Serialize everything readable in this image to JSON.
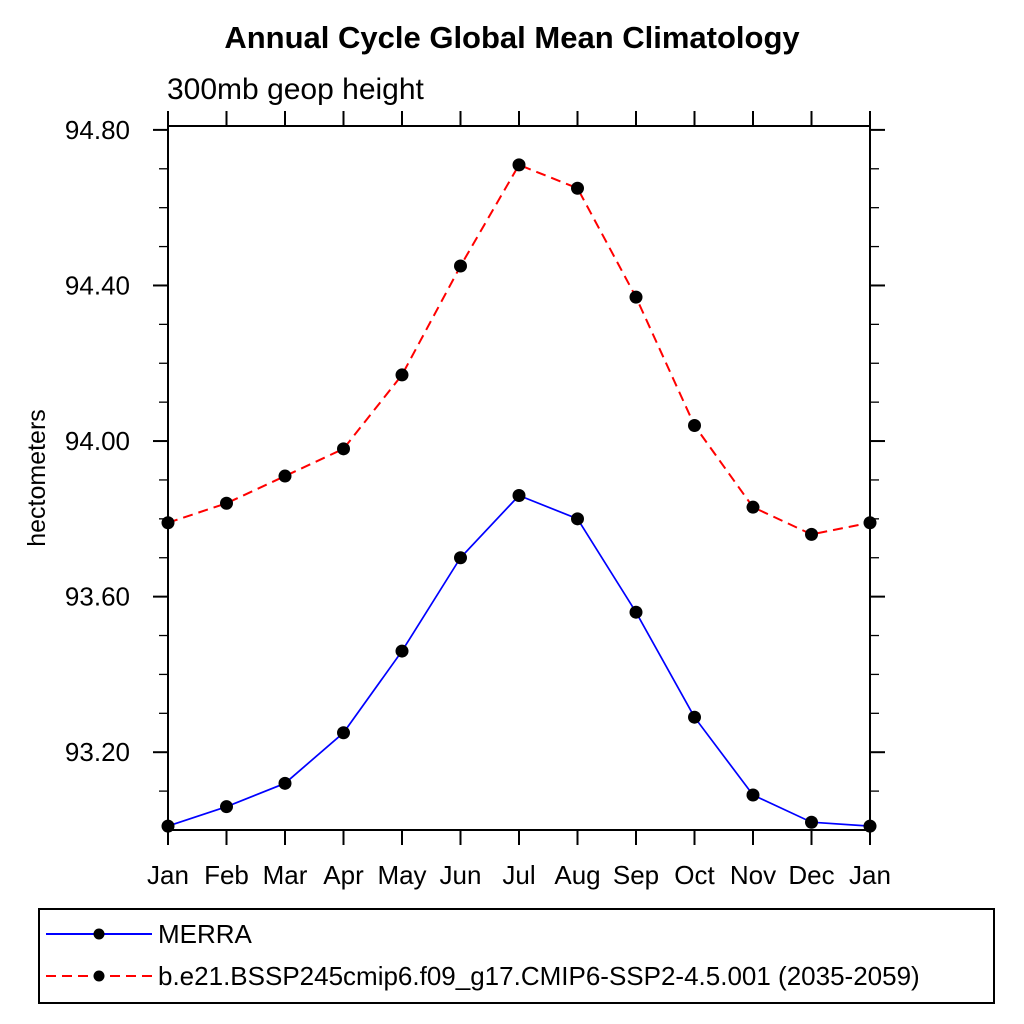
{
  "page": {
    "background": "#ffffff"
  },
  "chart_data": {
    "type": "line",
    "title": "Annual Cycle Global Mean Climatology",
    "subtitle": "300mb geop height",
    "ylabel": "hectometers",
    "categories": [
      "Jan",
      "Feb",
      "Mar",
      "Apr",
      "May",
      "Jun",
      "Jul",
      "Aug",
      "Sep",
      "Oct",
      "Nov",
      "Dec",
      "Jan"
    ],
    "ylim": [
      93.0,
      94.81
    ],
    "yticks_major": [
      93.2,
      93.6,
      94.0,
      94.4,
      94.8
    ],
    "ytick_decimals": 2,
    "yminor_step": 0.1,
    "grid": false,
    "axis_color": "#000000",
    "marker_color": "#000000",
    "legend_position": "bottom-left-box",
    "series": [
      {
        "name": "MERRA",
        "color": "#0000ff",
        "line_style": "solid",
        "marker": "filled-circle",
        "values": [
          93.01,
          93.06,
          93.12,
          93.25,
          93.46,
          93.7,
          93.86,
          93.8,
          93.56,
          93.29,
          93.09,
          93.02,
          93.01
        ]
      },
      {
        "name": "b.e21.BSSP245cmip6.f09_g17.CMIP6-SSP2-4.5.001 (2035-2059)",
        "color": "#ff0000",
        "line_style": "dashed",
        "marker": "filled-circle",
        "values": [
          93.79,
          93.84,
          93.91,
          93.98,
          94.17,
          94.45,
          94.71,
          94.65,
          94.37,
          94.04,
          93.83,
          93.76,
          93.79
        ]
      }
    ]
  }
}
